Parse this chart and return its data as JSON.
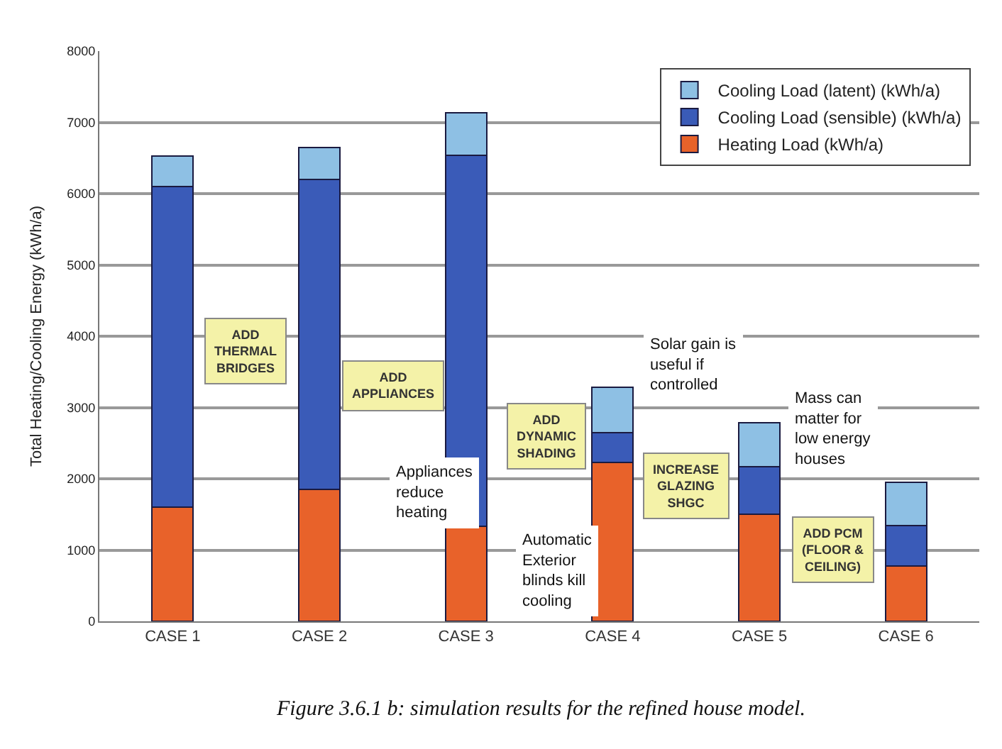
{
  "chart_data": {
    "type": "bar",
    "stacked": true,
    "categories": [
      "CASE 1",
      "CASE 2",
      "CASE 3",
      "CASE 4",
      "CASE 5",
      "CASE 6"
    ],
    "ylabel": "Total Heating/Cooling Energy (kWh/a)",
    "ylim": [
      0,
      8000
    ],
    "yticks": [
      0,
      1000,
      2000,
      3000,
      4000,
      5000,
      6000,
      7000,
      8000
    ],
    "grid": "y",
    "legend": "top right",
    "series": [
      {
        "name": "Heating Load (kWh/a)",
        "color": "#e8622a",
        "values": [
          1600,
          1850,
          1330,
          2230,
          1500,
          780
        ]
      },
      {
        "name": "Cooling Load (sensible) (kWh/a)",
        "color": "#3a5bb8",
        "values": [
          4500,
          4350,
          5210,
          420,
          670,
          560
        ]
      },
      {
        "name": "Cooling Load (latent) (kWh/a)",
        "color": "#8ec0e4",
        "values": [
          430,
          450,
          590,
          630,
          620,
          610
        ]
      }
    ],
    "annotations": [
      "ADD\nTHERMAL\nBRIDGES",
      "ADD\nAPPLIANCES",
      "ADD\nDYNAMIC\nSHADING",
      "INCREASE\nGLAZING\nSHGC",
      "ADD PCM\n(FLOOR &\nCEILING)",
      "Appliances\nreduce\nheating",
      "Automatic\nExterior\nblinds kill\ncooling",
      "Solar gain is\nuseful if\ncontrolled",
      "Mass can\nmatter for\nlow energy\nhouses",
      "Figure 3.6.1 b: simulation results for the refined house model."
    ]
  }
}
